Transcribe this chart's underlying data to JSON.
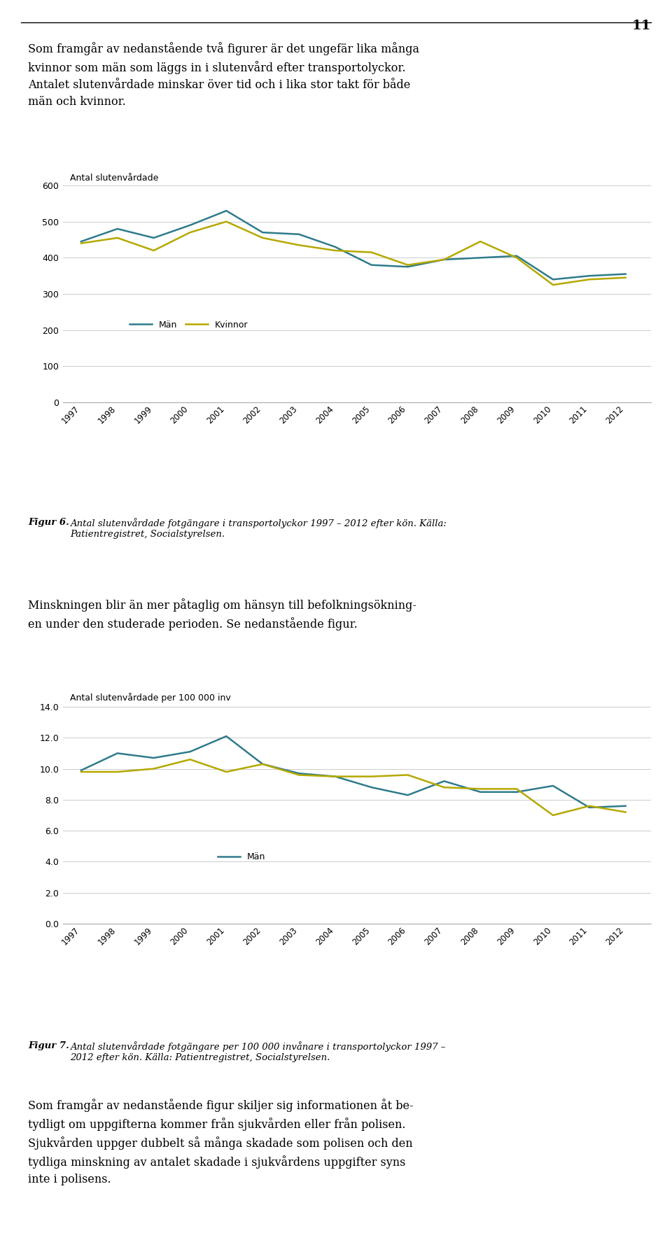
{
  "page_number": "11",
  "chart1_title": "Antal slutenvårdade",
  "chart1_years": [
    1997,
    1998,
    1999,
    2000,
    2001,
    2002,
    2003,
    2004,
    2005,
    2006,
    2007,
    2008,
    2009,
    2010,
    2011,
    2012
  ],
  "chart1_man": [
    445,
    480,
    455,
    490,
    530,
    470,
    465,
    430,
    380,
    375,
    395,
    400,
    405,
    340,
    350,
    355
  ],
  "chart1_kvinnor": [
    440,
    455,
    420,
    470,
    500,
    455,
    435,
    420,
    415,
    380,
    395,
    445,
    400,
    325,
    340,
    345
  ],
  "chart1_ylim": [
    0,
    600
  ],
  "chart1_yticks": [
    0,
    100,
    200,
    300,
    400,
    500,
    600
  ],
  "chart1_color_man": "#2e7b8c",
  "chart1_color_kvinnor": "#b5a800",
  "chart1_legend_man": "Män",
  "chart1_legend_kvinnor": "Kvinnor",
  "chart2_title": "Antal slutenvårdade per 100 000 inv",
  "chart2_years": [
    1997,
    1998,
    1999,
    2000,
    2001,
    2002,
    2003,
    2004,
    2005,
    2006,
    2007,
    2008,
    2009,
    2010,
    2011,
    2012
  ],
  "chart2_man": [
    9.9,
    11.0,
    10.7,
    11.1,
    12.1,
    10.3,
    9.7,
    9.5,
    8.8,
    8.3,
    9.2,
    8.5,
    8.5,
    8.9,
    7.5,
    7.6
  ],
  "chart2_kvinnor": [
    9.8,
    9.8,
    10.0,
    10.6,
    9.8,
    10.3,
    9.6,
    9.5,
    9.5,
    9.6,
    8.8,
    8.7,
    8.7,
    7.0,
    7.6,
    7.2
  ],
  "chart2_ylim": [
    0,
    14
  ],
  "chart2_yticks": [
    0.0,
    2.0,
    4.0,
    6.0,
    8.0,
    10.0,
    12.0,
    14.0
  ],
  "chart2_color_man": "#2e7b8c",
  "chart2_color_kvinnor": "#b5a800",
  "chart2_legend_man": "Män",
  "background_color": "#ffffff",
  "grid_color": "#cccccc",
  "line_color_bottom": "#aaaaaa"
}
